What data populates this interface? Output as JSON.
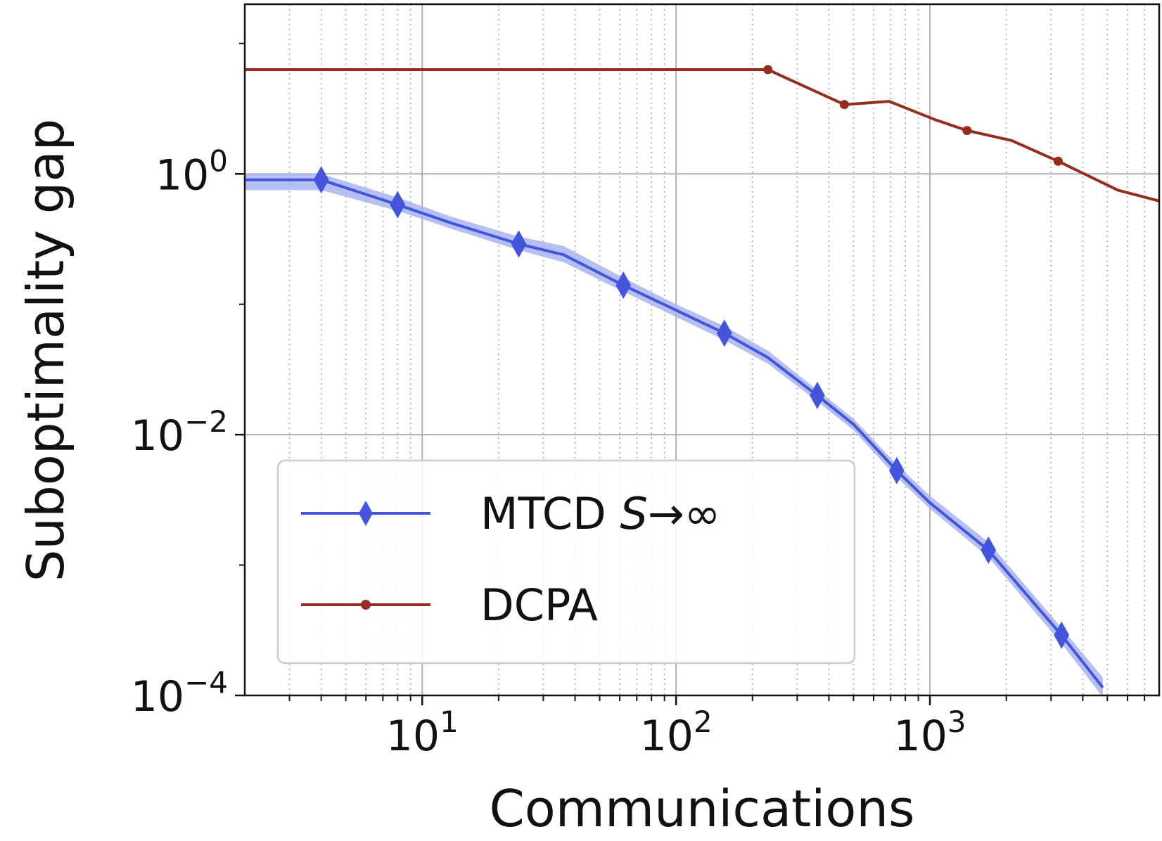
{
  "chart_data": {
    "type": "line",
    "xlabel": "Communications",
    "ylabel": "Suboptimality gap",
    "xscale": "log",
    "yscale": "log",
    "xlim": [
      2,
      8000
    ],
    "ylim": [
      0.0001,
      20
    ],
    "grid": true,
    "legend_position": "lower-left",
    "x_ticks": [
      {
        "base": "10",
        "exp": "1",
        "value": 10
      },
      {
        "base": "10",
        "exp": "2",
        "value": 100
      },
      {
        "base": "10",
        "exp": "3",
        "value": 1000
      }
    ],
    "y_ticks": [
      {
        "base": "10",
        "exp": "0",
        "value": 1
      },
      {
        "base": "10",
        "exp": "−2",
        "value": 0.01
      },
      {
        "base": "10",
        "exp": "−4",
        "value": 0.0001
      }
    ],
    "series": [
      {
        "name": "MTCD S→∞",
        "legend_main": "MTCD ",
        "legend_italic": "S",
        "legend_tail": "→∞",
        "color": "#4355dd",
        "band_color": "#a9b4ef",
        "marker": "diamond",
        "points": [
          {
            "x": 2,
            "y": 0.9,
            "lo": 0.75,
            "hi": 1.0
          },
          {
            "x": 4,
            "y": 0.9,
            "lo": 0.75,
            "hi": 1.0
          },
          {
            "x": 8,
            "y": 0.58,
            "lo": 0.52,
            "hi": 0.66
          },
          {
            "x": 13,
            "y": 0.42,
            "lo": 0.38,
            "hi": 0.47
          },
          {
            "x": 24,
            "y": 0.29,
            "lo": 0.26,
            "hi": 0.33
          },
          {
            "x": 36,
            "y": 0.24,
            "lo": 0.21,
            "hi": 0.28
          },
          {
            "x": 62,
            "y": 0.14,
            "lo": 0.125,
            "hi": 0.16
          },
          {
            "x": 100,
            "y": 0.09,
            "lo": 0.08,
            "hi": 0.1
          },
          {
            "x": 155,
            "y": 0.06,
            "lo": 0.053,
            "hi": 0.068
          },
          {
            "x": 230,
            "y": 0.039,
            "lo": 0.035,
            "hi": 0.044
          },
          {
            "x": 360,
            "y": 0.02,
            "lo": 0.018,
            "hi": 0.022
          },
          {
            "x": 500,
            "y": 0.012,
            "lo": 0.0108,
            "hi": 0.0133
          },
          {
            "x": 740,
            "y": 0.0053,
            "lo": 0.0047,
            "hi": 0.0059
          },
          {
            "x": 1000,
            "y": 0.003,
            "lo": 0.0027,
            "hi": 0.0034
          },
          {
            "x": 1700,
            "y": 0.0013,
            "lo": 0.00115,
            "hi": 0.0015
          },
          {
            "x": 3300,
            "y": 0.00029,
            "lo": 0.00025,
            "hi": 0.00033
          },
          {
            "x": 4800,
            "y": 0.000115,
            "lo": 9.7e-05,
            "hi": 0.000137
          }
        ],
        "marker_x": [
          4,
          8,
          24,
          62,
          155,
          360,
          740,
          1700,
          3300
        ]
      },
      {
        "name": "DCPA",
        "legend_main": "DCPA",
        "color": "#962d1e",
        "marker": "dot",
        "points": [
          {
            "x": 2,
            "y": 6.3
          },
          {
            "x": 230,
            "y": 6.3
          },
          {
            "x": 460,
            "y": 3.4
          },
          {
            "x": 690,
            "y": 3.6
          },
          {
            "x": 1050,
            "y": 2.6
          },
          {
            "x": 1400,
            "y": 2.15
          },
          {
            "x": 2100,
            "y": 1.8
          },
          {
            "x": 3200,
            "y": 1.25
          },
          {
            "x": 5500,
            "y": 0.75
          },
          {
            "x": 8000,
            "y": 0.62
          }
        ],
        "marker_x": [
          230,
          460,
          1400,
          3200
        ]
      }
    ]
  }
}
